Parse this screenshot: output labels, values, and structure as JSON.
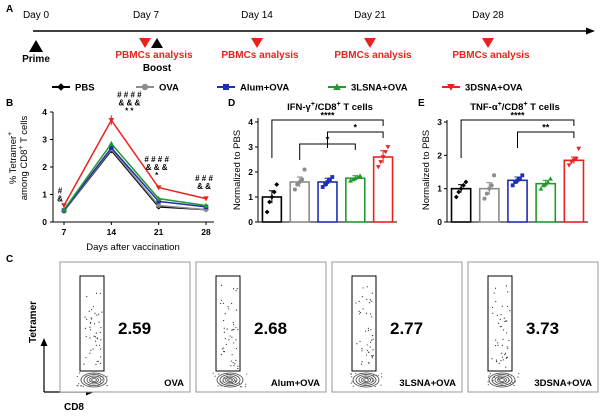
{
  "colors": {
    "pbs": "#000000",
    "ova": "#8c8c8c",
    "alum": "#1f2fb3",
    "lsna": "#1f9a2c",
    "dsna": "#e8231f",
    "analysis": "#e8231f"
  },
  "panel_labels": {
    "a": "A",
    "b": "B",
    "c": "C",
    "d": "D",
    "e": "E"
  },
  "timeline": {
    "days": [
      "Day 0",
      "Day 7",
      "Day 14",
      "Day 21",
      "Day 28"
    ],
    "prime": "Prime",
    "boost": "Boost",
    "analysis_label": "PBMCs analysis"
  },
  "legend": [
    {
      "key": "pbs",
      "label": "PBS",
      "marker": "diamond"
    },
    {
      "key": "ova",
      "label": "OVA",
      "marker": "circle"
    },
    {
      "key": "alum",
      "label": "Alum+OVA",
      "marker": "square"
    },
    {
      "key": "lsna",
      "label": "3LSNA+OVA",
      "marker": "triangle-up"
    },
    {
      "key": "dsna",
      "label": "3DSNA+OVA",
      "marker": "triangle-down"
    }
  ],
  "chart_data": [
    {
      "id": "B",
      "type": "line",
      "ylabel_line1": "% Tetramer",
      "ylabel_sup": "+",
      "ylabel_line2": "among CD8",
      "ylabel_sup2": "+",
      "ylabel_tail": " T cells",
      "xlabel": "Days after vaccination",
      "x": [
        7,
        14,
        21,
        28
      ],
      "x_ticks": [
        "7",
        "14",
        "21",
        "28"
      ],
      "ylim": [
        0,
        4
      ],
      "y_ticks": [
        "0",
        "1",
        "2",
        "3",
        "4"
      ],
      "series": [
        {
          "key": "pbs",
          "name": "PBS",
          "values": [
            0.4,
            2.6,
            0.55,
            0.45
          ]
        },
        {
          "key": "ova",
          "name": "OVA",
          "values": [
            0.4,
            2.65,
            0.6,
            0.45
          ]
        },
        {
          "key": "alum",
          "name": "Alum+OVA",
          "values": [
            0.42,
            2.7,
            0.75,
            0.55
          ]
        },
        {
          "key": "lsna",
          "name": "3LSNA+OVA",
          "values": [
            0.45,
            2.85,
            0.85,
            0.6
          ]
        },
        {
          "key": "dsna",
          "name": "3DSNA+OVA",
          "values": [
            0.6,
            3.7,
            1.25,
            0.85
          ]
        }
      ],
      "annotations": [
        {
          "x": 7,
          "lines": [
            "#",
            "&"
          ]
        },
        {
          "x": 14,
          "lines": [
            "# # # #",
            "& & &",
            "* *"
          ]
        },
        {
          "x": 21,
          "lines": [
            "# # # #",
            "& & &",
            "*"
          ]
        },
        {
          "x": 28,
          "lines": [
            "# # #",
            "& &"
          ]
        }
      ]
    },
    {
      "id": "D",
      "type": "bar",
      "title": "IFN-γ",
      "title_sup1": "+",
      "title_mid": "/CD8",
      "title_sup2": "+",
      "title_tail": " T cells",
      "ylabel": "Normalized to PBS",
      "ylim": [
        0,
        4
      ],
      "y_ticks": [
        "0",
        "1",
        "2",
        "3",
        "4"
      ],
      "categories": [
        "PBS",
        "OVA",
        "Alum+OVA",
        "3LSNA+OVA",
        "3DSNA+OVA"
      ],
      "series_keys": [
        "pbs",
        "ova",
        "alum",
        "lsna",
        "dsna"
      ],
      "values": [
        1.0,
        1.6,
        1.6,
        1.75,
        2.6
      ],
      "errors": [
        0.25,
        0.2,
        0.15,
        0.1,
        0.25
      ],
      "points": [
        [
          0.4,
          0.8,
          1.0,
          1.2,
          1.5
        ],
        [
          1.3,
          1.5,
          1.6,
          1.7,
          2.1
        ],
        [
          1.4,
          1.5,
          1.6,
          1.7,
          1.8
        ],
        [
          1.65,
          1.7,
          1.75,
          1.8,
          1.85
        ],
        [
          2.2,
          2.4,
          2.6,
          2.8,
          3.0
        ]
      ],
      "significance": [
        {
          "from": 0,
          "to": 4,
          "label": "****"
        },
        {
          "from": 2,
          "to": 4,
          "label": "*"
        },
        {
          "from": 1,
          "to": 3,
          "label": "*"
        }
      ]
    },
    {
      "id": "E",
      "type": "bar",
      "title": "TNF-α",
      "title_sup1": "+",
      "title_mid": "/CD8",
      "title_sup2": "+",
      "title_tail": " T cells",
      "ylabel": "Normalized to PBS",
      "ylim": [
        0,
        3
      ],
      "y_ticks": [
        "0",
        "1",
        "2",
        "3"
      ],
      "categories": [
        "PBS",
        "OVA",
        "Alum+OVA",
        "3LSNA+OVA",
        "3DSNA+OVA"
      ],
      "series_keys": [
        "pbs",
        "ova",
        "alum",
        "lsna",
        "dsna"
      ],
      "values": [
        1.0,
        1.0,
        1.25,
        1.15,
        1.85
      ],
      "errors": [
        0.12,
        0.18,
        0.1,
        0.1,
        0.1
      ],
      "points": [
        [
          0.75,
          0.9,
          1.0,
          1.1,
          1.2
        ],
        [
          0.7,
          0.85,
          1.0,
          1.1,
          1.4
        ],
        [
          1.1,
          1.2,
          1.25,
          1.3,
          1.4
        ],
        [
          1.0,
          1.1,
          1.15,
          1.2,
          1.3
        ],
        [
          1.7,
          1.8,
          1.85,
          1.9,
          2.2
        ]
      ],
      "significance": [
        {
          "from": 0,
          "to": 4,
          "label": "****"
        },
        {
          "from": 2,
          "to": 4,
          "label": "**"
        }
      ]
    }
  ],
  "flow": {
    "y_axis": "Tetramer",
    "x_axis": "CD8",
    "plots": [
      {
        "percent": "2.59",
        "label": "OVA"
      },
      {
        "percent": "2.68",
        "label": "Alum+OVA"
      },
      {
        "percent": "2.77",
        "label": "3LSNA+OVA"
      },
      {
        "percent": "3.73",
        "label": "3DSNA+OVA"
      }
    ]
  }
}
